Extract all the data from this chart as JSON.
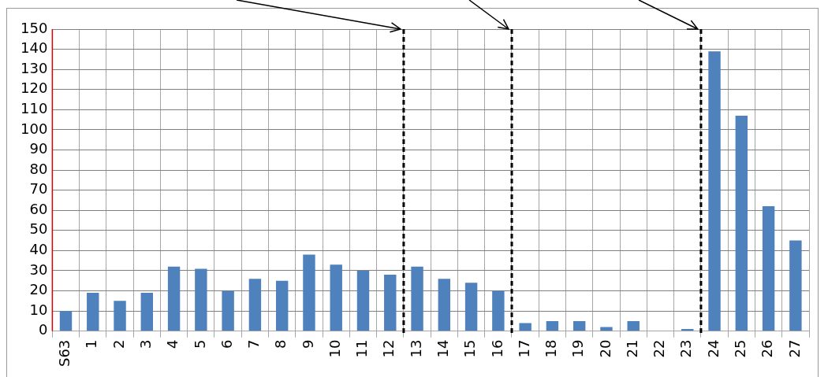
{
  "chart_data": {
    "type": "bar",
    "categories": [
      "S63",
      "1",
      "2",
      "3",
      "4",
      "5",
      "6",
      "7",
      "8",
      "9",
      "10",
      "11",
      "12",
      "13",
      "14",
      "15",
      "16",
      "17",
      "18",
      "19",
      "20",
      "21",
      "22",
      "23",
      "24",
      "25",
      "26",
      "27"
    ],
    "values": [
      10,
      19,
      15,
      19,
      32,
      31,
      20,
      26,
      25,
      38,
      33,
      30,
      28,
      32,
      26,
      24,
      20,
      4,
      5,
      5,
      2,
      5,
      0,
      1,
      139,
      107,
      62,
      45
    ],
    "color": "#4f81bd",
    "ylim": [
      0,
      150
    ],
    "yticks": [
      0,
      10,
      20,
      30,
      40,
      50,
      60,
      70,
      80,
      90,
      100,
      110,
      120,
      130,
      140,
      150
    ],
    "grid": true
  }
}
